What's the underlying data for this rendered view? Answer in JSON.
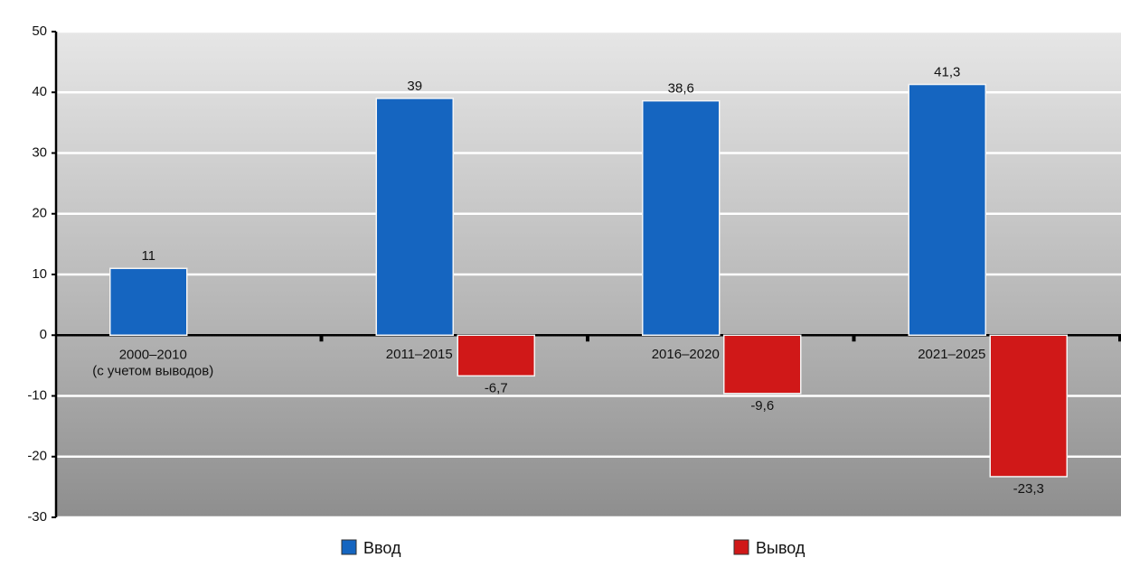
{
  "chart_data": {
    "type": "bar",
    "categories": [
      "2000–2010\n(с учетом выводов)",
      "2011–2015",
      "2016–2020",
      "2021–2025"
    ],
    "series": [
      {
        "name": "Ввод",
        "color": "#1565c0",
        "values": [
          11,
          39,
          38.6,
          41.3
        ],
        "value_labels": [
          "11",
          "39",
          "38,6",
          "41,3"
        ]
      },
      {
        "name": "Вывод",
        "color": "#d01818",
        "values": [
          null,
          -6.7,
          -9.6,
          -23.3
        ],
        "value_labels": [
          null,
          "-6,7",
          "-9,6",
          "-23,3"
        ]
      }
    ],
    "ylim": [
      -30,
      50
    ],
    "yticks": [
      -30,
      -20,
      -10,
      0,
      10,
      20,
      30,
      40,
      50
    ],
    "grid": true,
    "legend": "bottom"
  }
}
